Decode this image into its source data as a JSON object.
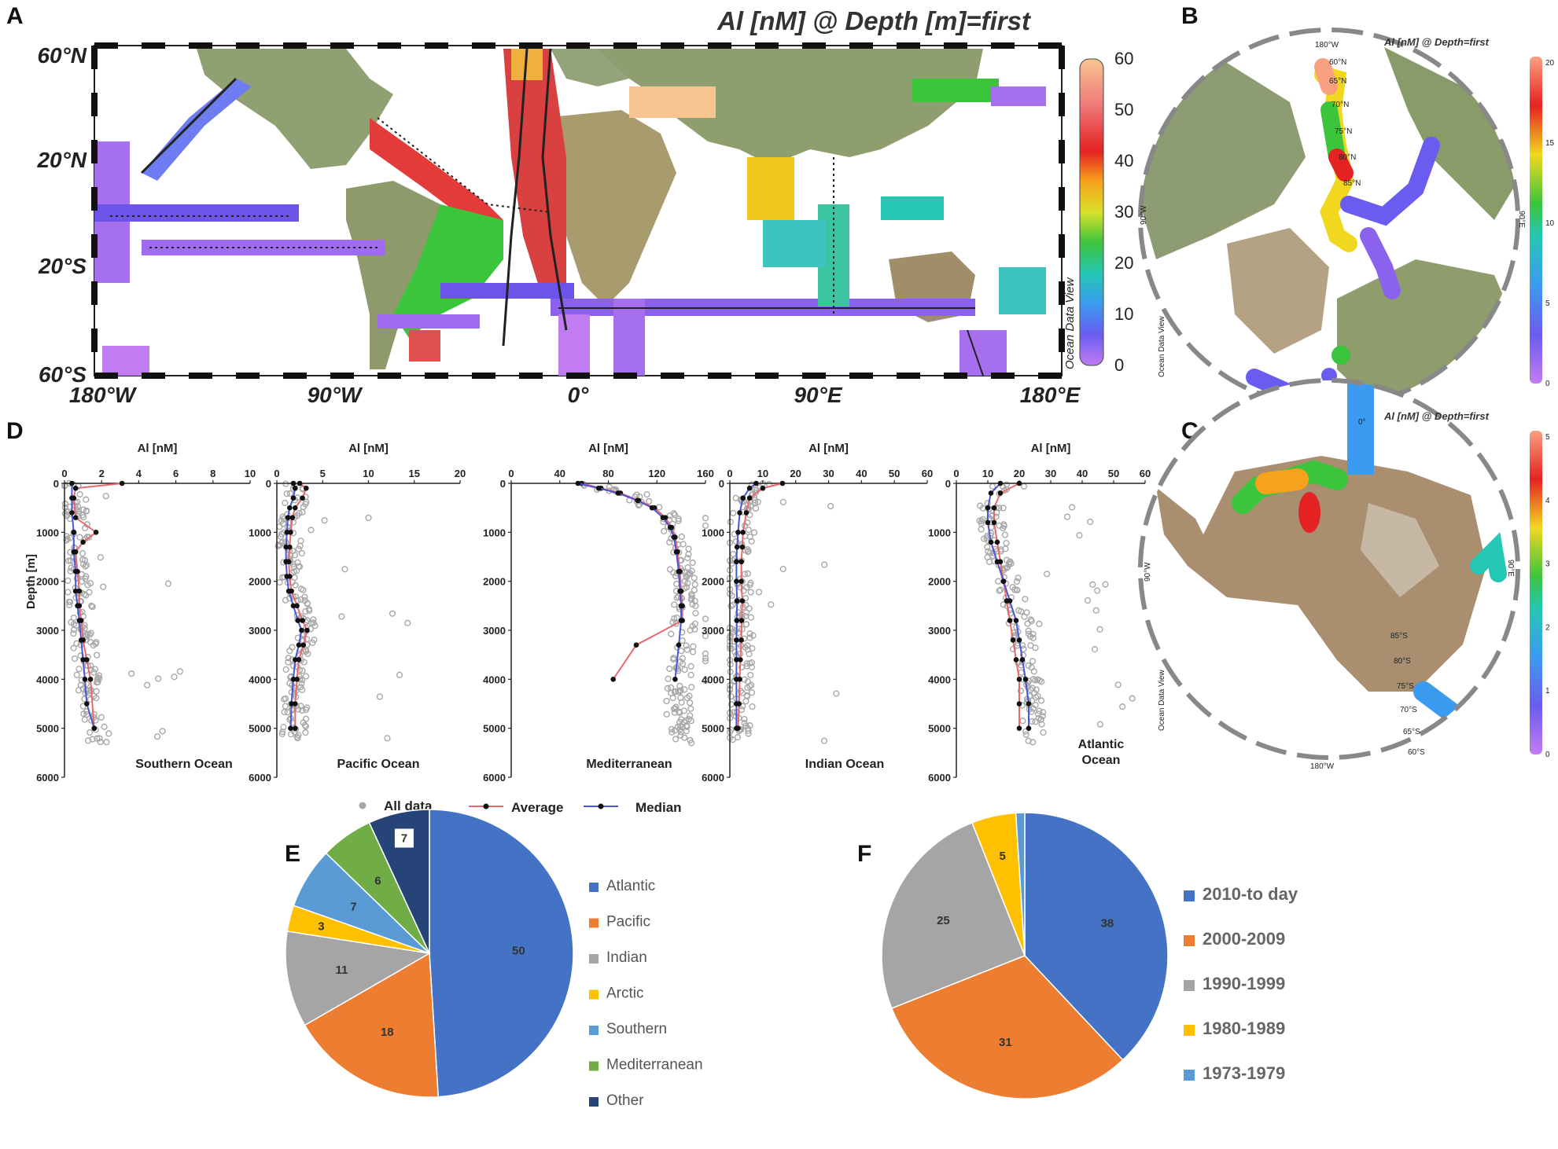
{
  "panel_letters": {
    "a": "A",
    "b": "B",
    "c": "C",
    "d": "D",
    "e": "E",
    "f": "F"
  },
  "map_a": {
    "title": "Al [nM] @ Depth [m]=first",
    "lat_labels": [
      "60°N",
      "20°N",
      "20°S",
      "60°S"
    ],
    "lon_labels": [
      "180°W",
      "90°W",
      "0°",
      "90°E",
      "180°E"
    ],
    "colorbar": {
      "min": 0,
      "max": 60,
      "ticks": [
        "60",
        "50",
        "40",
        "30",
        "20",
        "10",
        "0"
      ]
    },
    "watermark": "Ocean Data View"
  },
  "map_b": {
    "title": "Al [nM] @ Depth=first",
    "colorbar_ticks": [
      "20",
      "15",
      "10",
      "5",
      "0"
    ],
    "graticule": [
      "180°W",
      "60°N",
      "65°N",
      "70°N",
      "75°N",
      "80°N",
      "85°N",
      "90°W",
      "90°E",
      "0°"
    ],
    "watermark": "Ocean Data View"
  },
  "map_c": {
    "title": "Al [nM] @ Depth=first",
    "colorbar_ticks": [
      "5",
      "4",
      "3",
      "2",
      "1",
      "0"
    ],
    "graticule": [
      "0°",
      "85°S",
      "80°S",
      "75°S",
      "70°S",
      "65°S",
      "60°S",
      "180°W",
      "90°W",
      "90°E"
    ],
    "watermark": "Ocean Data View"
  },
  "profiles": {
    "x_title": "Al [nM]",
    "y_title": "Depth [m]",
    "y_ticks": [
      "0",
      "1000",
      "2000",
      "3000",
      "4000",
      "5000",
      "6000"
    ],
    "legend": {
      "all": "All data",
      "avg": "Average",
      "med": "Median"
    },
    "colors": {
      "avg": "#e8696b",
      "med": "#4a55d8",
      "pts": "#a8a8a8"
    }
  },
  "chart_data": [
    {
      "type": "line",
      "title": "Southern Ocean",
      "xlabel": "Al [nM]",
      "ylabel": "Depth [m]",
      "xlim": [
        0,
        10
      ],
      "ylim": [
        6000,
        0
      ],
      "x_ticks": [
        "0",
        "2",
        "4",
        "6",
        "8",
        "10"
      ],
      "series": [
        {
          "name": "Average",
          "x": [
            3.1,
            0.6,
            0.5,
            0.6,
            1.7,
            1.0,
            0.6,
            0.7,
            0.8,
            0.8,
            0.9,
            1.0,
            1.2,
            1.4,
            1.6
          ],
          "y": [
            0,
            100,
            300,
            700,
            1000,
            1200,
            1400,
            1800,
            2200,
            2500,
            2800,
            3200,
            3600,
            4000,
            5000
          ]
        },
        {
          "name": "Median",
          "x": [
            0.4,
            0.4,
            0.4,
            0.5,
            0.5,
            0.6,
            0.6,
            0.7,
            0.8,
            0.9,
            1.0,
            1.1,
            1.2,
            1.6
          ],
          "y": [
            0,
            300,
            600,
            1000,
            1400,
            1800,
            2200,
            2500,
            2800,
            3200,
            3600,
            4000,
            4500,
            5000
          ]
        }
      ]
    },
    {
      "type": "line",
      "title": "Pacific Ocean",
      "xlabel": "Al [nM]",
      "ylabel": "Depth [m]",
      "xlim": [
        0,
        20
      ],
      "ylim": [
        6000,
        0
      ],
      "x_ticks": [
        "0",
        "5",
        "10",
        "15",
        "20"
      ],
      "series": [
        {
          "name": "Average",
          "x": [
            2.5,
            3.2,
            2.8,
            2.0,
            1.7,
            1.5,
            1.4,
            1.3,
            1.4,
            1.6,
            2.2,
            2.8,
            3.3,
            2.9,
            2.4,
            2.2,
            2.0,
            2.0
          ],
          "y": [
            0,
            100,
            300,
            500,
            700,
            1000,
            1300,
            1600,
            1900,
            2200,
            2500,
            2800,
            3000,
            3300,
            3600,
            4000,
            4500,
            5000
          ]
        },
        {
          "name": "Median",
          "x": [
            1.8,
            2.0,
            1.8,
            1.4,
            1.2,
            1.1,
            1.0,
            1.0,
            1.1,
            1.3,
            1.8,
            2.3,
            2.7,
            2.4,
            2.0,
            1.8,
            1.6,
            1.5
          ],
          "y": [
            0,
            100,
            300,
            500,
            700,
            1000,
            1300,
            1600,
            1900,
            2200,
            2500,
            2800,
            3000,
            3300,
            3600,
            4000,
            4500,
            5000
          ]
        }
      ]
    },
    {
      "type": "line",
      "title": "Mediterranean",
      "xlabel": "Al [nM]",
      "ylabel": "Depth [m]",
      "xlim": [
        0,
        160
      ],
      "ylim": [
        6000,
        0
      ],
      "x_ticks": [
        "0",
        "40",
        "80",
        "120",
        "160"
      ],
      "series": [
        {
          "name": "Average",
          "x": [
            58,
            74,
            90,
            105,
            118,
            127,
            132,
            135,
            137,
            139,
            140,
            141,
            141,
            103,
            84
          ],
          "y": [
            0,
            100,
            200,
            350,
            500,
            700,
            900,
            1100,
            1400,
            1800,
            2200,
            2500,
            2800,
            3300,
            4000
          ]
        },
        {
          "name": "Median",
          "x": [
            55,
            72,
            88,
            104,
            116,
            125,
            131,
            134,
            136,
            138,
            139,
            140,
            140,
            138,
            135
          ],
          "y": [
            0,
            100,
            200,
            350,
            500,
            700,
            900,
            1100,
            1400,
            1800,
            2200,
            2500,
            2800,
            3300,
            4000
          ]
        }
      ]
    },
    {
      "type": "line",
      "title": "Indian Ocean",
      "xlabel": "Al [nM]",
      "ylabel": "Depth [m]",
      "xlim": [
        0,
        60
      ],
      "ylim": [
        6000,
        0
      ],
      "x_ticks": [
        "0",
        "10",
        "20",
        "30",
        "40",
        "50",
        "60"
      ],
      "series": [
        {
          "name": "Average",
          "x": [
            16,
            10,
            6,
            5,
            4,
            3.8,
            3.5,
            3.5,
            3.8,
            3.6,
            3.5,
            3.2,
            3.0,
            2.8,
            2.5
          ],
          "y": [
            0,
            100,
            300,
            600,
            1000,
            1300,
            1600,
            2000,
            2400,
            2800,
            3200,
            3600,
            4000,
            4500,
            5000
          ]
        },
        {
          "name": "Median",
          "x": [
            8,
            6,
            4,
            3,
            2.5,
            2.2,
            2.0,
            2.0,
            2.2,
            2.1,
            2.0,
            2.0,
            2.0,
            2.0,
            2.0
          ],
          "y": [
            0,
            100,
            300,
            600,
            1000,
            1300,
            1600,
            2000,
            2400,
            2800,
            3200,
            3600,
            4000,
            4500,
            5000
          ]
        }
      ]
    },
    {
      "type": "line",
      "title": "Atlantic Ocean",
      "xlabel": "Al [nM]",
      "ylabel": "Depth [m]",
      "xlim": [
        0,
        60
      ],
      "ylim": [
        6000,
        0
      ],
      "x_ticks": [
        "0",
        "10",
        "20",
        "30",
        "40",
        "50",
        "60"
      ],
      "series": [
        {
          "name": "Average",
          "x": [
            20,
            14,
            12,
            12,
            13,
            14,
            15,
            16,
            17,
            18,
            19,
            20,
            20,
            20
          ],
          "y": [
            0,
            200,
            500,
            800,
            1200,
            1600,
            2000,
            2400,
            2800,
            3200,
            3600,
            4000,
            4500,
            5000
          ]
        },
        {
          "name": "Median",
          "x": [
            14,
            11,
            10,
            10,
            11,
            13,
            15,
            17,
            19,
            20,
            21,
            22,
            23,
            23
          ],
          "y": [
            0,
            200,
            500,
            800,
            1200,
            1600,
            2000,
            2400,
            2800,
            3200,
            3600,
            4000,
            4500,
            5000
          ]
        }
      ]
    },
    {
      "type": "pie",
      "labels": [
        "Atlantic",
        "Pacific",
        "Indian",
        "Arctic",
        "Southern",
        "Mediterranean",
        "Other"
      ],
      "values": [
        50,
        18,
        11,
        3,
        7,
        6,
        7
      ],
      "colors": [
        "#4472c4",
        "#ed7d31",
        "#a5a5a5",
        "#ffc000",
        "#5b9bd5",
        "#70ad47",
        "#264478"
      ],
      "legend": "right"
    },
    {
      "type": "pie",
      "labels": [
        "2010-to day",
        "2000-2009",
        "1990-1999",
        "1980-1989",
        "1973-1979"
      ],
      "values": [
        38,
        31,
        25,
        5,
        1
      ],
      "data_labels": [
        "38",
        "31",
        "25",
        "5",
        ""
      ],
      "colors": [
        "#4472c4",
        "#ed7d31",
        "#a5a5a5",
        "#ffc000",
        "#5b9bd5"
      ],
      "legend": "right"
    }
  ]
}
